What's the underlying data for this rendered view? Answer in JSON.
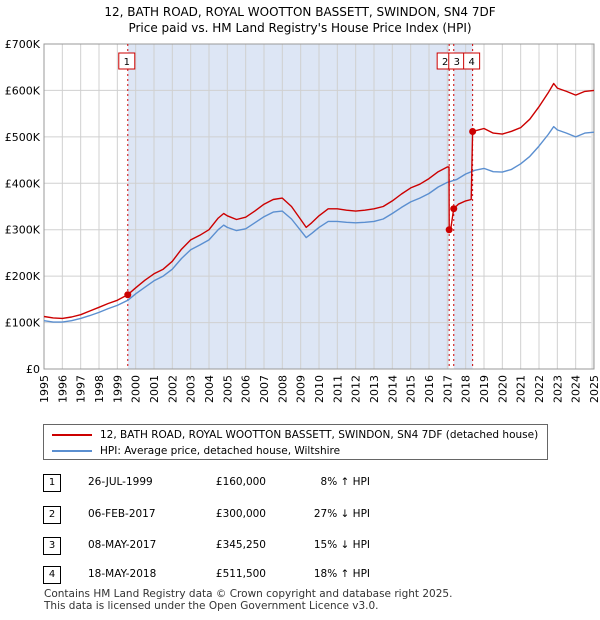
{
  "title": {
    "line1": "12, BATH ROAD, ROYAL WOOTTON BASSETT, SWINDON, SN4 7DF",
    "line2": "Price paid vs. HM Land Registry's House Price Index (HPI)"
  },
  "colors": {
    "property": "#cc0000",
    "hpi": "#5b8fd0",
    "ownership_shade": "#dde6f5",
    "grid": "#d0d0d0",
    "marker_line": "#cc0000"
  },
  "legend": {
    "property_label": "12, BATH ROAD, ROYAL WOOTTON BASSETT, SWINDON, SN4 7DF (detached house)",
    "hpi_label": "HPI: Average price, detached house, Wiltshire"
  },
  "transactions": [
    {
      "id": "1",
      "date": "26-JUL-1999",
      "price": "£160,000",
      "hpi": "8% ↑ HPI"
    },
    {
      "id": "2",
      "date": "06-FEB-2017",
      "price": "£300,000",
      "hpi": "27% ↓ HPI"
    },
    {
      "id": "3",
      "date": "08-MAY-2017",
      "price": "£345,250",
      "hpi": "15% ↓ HPI"
    },
    {
      "id": "4",
      "date": "18-MAY-2018",
      "price": "£511,500",
      "hpi": "18% ↑ HPI"
    }
  ],
  "footer": {
    "line1": "Contains HM Land Registry data © Crown copyright and database right 2025.",
    "line2": "This data is licensed under the Open Government Licence v3.0."
  },
  "chart_data": {
    "type": "line",
    "title": "12, BATH ROAD, ROYAL WOOTTON BASSETT, SWINDON, SN4 7DF — Price paid vs. HM Land Registry's House Price Index (HPI)",
    "xlim": [
      1995,
      2025
    ],
    "ylim": [
      0,
      700000
    ],
    "x_ticks": [
      1995,
      1996,
      1997,
      1998,
      1999,
      2000,
      2001,
      2002,
      2003,
      2004,
      2005,
      2006,
      2007,
      2008,
      2009,
      2010,
      2011,
      2012,
      2013,
      2014,
      2015,
      2016,
      2017,
      2018,
      2019,
      2020,
      2021,
      2022,
      2023,
      2024,
      2025
    ],
    "y_ticks": [
      {
        "value": 0,
        "label": "£0"
      },
      {
        "value": 100000,
        "label": "£100K"
      },
      {
        "value": 200000,
        "label": "£200K"
      },
      {
        "value": 300000,
        "label": "£300K"
      },
      {
        "value": 400000,
        "label": "£400K"
      },
      {
        "value": 500000,
        "label": "£500K"
      },
      {
        "value": 600000,
        "label": "£600K"
      },
      {
        "value": 700000,
        "label": "£700K"
      }
    ],
    "ownership_periods": [
      [
        1999.57,
        2017.1
      ],
      [
        2017.35,
        2018.38
      ]
    ],
    "sale_markers": [
      {
        "label": "1",
        "x": 1999.57,
        "y": 160000
      },
      {
        "label": "2",
        "x": 2017.1,
        "y": 300000
      },
      {
        "label": "3",
        "x": 2017.35,
        "y": 345250
      },
      {
        "label": "4",
        "x": 2018.38,
        "y": 511500
      }
    ],
    "series": [
      {
        "name": "12, BATH ROAD, ROYAL WOOTTON BASSETT, SWINDON, SN4 7DF (detached house)",
        "color": "#cc0000",
        "points": [
          [
            1995.0,
            113000
          ],
          [
            1995.5,
            110000
          ],
          [
            1996.0,
            109000
          ],
          [
            1996.5,
            112000
          ],
          [
            1997.0,
            117000
          ],
          [
            1997.5,
            125000
          ],
          [
            1998.0,
            133000
          ],
          [
            1998.5,
            141000
          ],
          [
            1999.0,
            148000
          ],
          [
            1999.57,
            160000
          ],
          [
            2000.0,
            175000
          ],
          [
            2000.5,
            191000
          ],
          [
            2001.0,
            205000
          ],
          [
            2001.5,
            215000
          ],
          [
            2002.0,
            232000
          ],
          [
            2002.5,
            258000
          ],
          [
            2003.0,
            278000
          ],
          [
            2003.5,
            288000
          ],
          [
            2004.0,
            300000
          ],
          [
            2004.5,
            325000
          ],
          [
            2004.8,
            335000
          ],
          [
            2005.0,
            330000
          ],
          [
            2005.5,
            322000
          ],
          [
            2006.0,
            327000
          ],
          [
            2006.5,
            340000
          ],
          [
            2007.0,
            355000
          ],
          [
            2007.5,
            365000
          ],
          [
            2008.0,
            368000
          ],
          [
            2008.5,
            350000
          ],
          [
            2009.0,
            322000
          ],
          [
            2009.3,
            305000
          ],
          [
            2009.6,
            315000
          ],
          [
            2010.0,
            330000
          ],
          [
            2010.5,
            345000
          ],
          [
            2011.0,
            345000
          ],
          [
            2011.5,
            342000
          ],
          [
            2012.0,
            340000
          ],
          [
            2012.5,
            342000
          ],
          [
            2013.0,
            345000
          ],
          [
            2013.5,
            350000
          ],
          [
            2014.0,
            362000
          ],
          [
            2014.5,
            377000
          ],
          [
            2015.0,
            390000
          ],
          [
            2015.5,
            398000
          ],
          [
            2016.0,
            410000
          ],
          [
            2016.5,
            425000
          ],
          [
            2017.0,
            435000
          ],
          [
            2017.09,
            435000
          ],
          [
            2017.1,
            300000
          ],
          [
            2017.2,
            305000
          ],
          [
            2017.35,
            345250
          ],
          [
            2017.6,
            355000
          ],
          [
            2018.0,
            362000
          ],
          [
            2018.3,
            365000
          ],
          [
            2018.38,
            511500
          ],
          [
            2018.7,
            515000
          ],
          [
            2019.0,
            518000
          ],
          [
            2019.5,
            508000
          ],
          [
            2020.0,
            506000
          ],
          [
            2020.5,
            512000
          ],
          [
            2021.0,
            520000
          ],
          [
            2021.5,
            538000
          ],
          [
            2022.0,
            565000
          ],
          [
            2022.5,
            595000
          ],
          [
            2022.8,
            615000
          ],
          [
            2023.0,
            605000
          ],
          [
            2023.5,
            598000
          ],
          [
            2024.0,
            590000
          ],
          [
            2024.5,
            598000
          ],
          [
            2025.0,
            600000
          ]
        ]
      },
      {
        "name": "HPI: Average price, detached house, Wiltshire",
        "color": "#5b8fd0",
        "points": [
          [
            1995.0,
            104000
          ],
          [
            1995.5,
            101000
          ],
          [
            1996.0,
            101000
          ],
          [
            1996.5,
            104000
          ],
          [
            1997.0,
            109000
          ],
          [
            1997.5,
            115000
          ],
          [
            1998.0,
            122000
          ],
          [
            1998.5,
            130000
          ],
          [
            1999.0,
            137000
          ],
          [
            1999.57,
            148000
          ],
          [
            2000.0,
            162000
          ],
          [
            2000.5,
            176000
          ],
          [
            2001.0,
            190000
          ],
          [
            2001.5,
            200000
          ],
          [
            2002.0,
            215000
          ],
          [
            2002.5,
            238000
          ],
          [
            2003.0,
            257000
          ],
          [
            2003.5,
            267000
          ],
          [
            2004.0,
            278000
          ],
          [
            2004.5,
            300000
          ],
          [
            2004.8,
            310000
          ],
          [
            2005.0,
            305000
          ],
          [
            2005.5,
            298000
          ],
          [
            2006.0,
            302000
          ],
          [
            2006.5,
            315000
          ],
          [
            2007.0,
            328000
          ],
          [
            2007.5,
            338000
          ],
          [
            2008.0,
            340000
          ],
          [
            2008.5,
            323000
          ],
          [
            2009.0,
            298000
          ],
          [
            2009.3,
            283000
          ],
          [
            2009.6,
            292000
          ],
          [
            2010.0,
            305000
          ],
          [
            2010.5,
            318000
          ],
          [
            2011.0,
            318000
          ],
          [
            2011.5,
            316000
          ],
          [
            2012.0,
            315000
          ],
          [
            2012.5,
            316000
          ],
          [
            2013.0,
            318000
          ],
          [
            2013.5,
            323000
          ],
          [
            2014.0,
            335000
          ],
          [
            2014.5,
            348000
          ],
          [
            2015.0,
            360000
          ],
          [
            2015.5,
            368000
          ],
          [
            2016.0,
            378000
          ],
          [
            2016.5,
            392000
          ],
          [
            2017.0,
            402000
          ],
          [
            2017.5,
            408000
          ],
          [
            2018.0,
            420000
          ],
          [
            2018.5,
            428000
          ],
          [
            2019.0,
            432000
          ],
          [
            2019.5,
            425000
          ],
          [
            2020.0,
            424000
          ],
          [
            2020.5,
            430000
          ],
          [
            2021.0,
            442000
          ],
          [
            2021.5,
            458000
          ],
          [
            2022.0,
            480000
          ],
          [
            2022.5,
            505000
          ],
          [
            2022.8,
            522000
          ],
          [
            2023.0,
            515000
          ],
          [
            2023.5,
            508000
          ],
          [
            2024.0,
            500000
          ],
          [
            2024.5,
            508000
          ],
          [
            2025.0,
            510000
          ]
        ]
      }
    ],
    "xlabel": "",
    "ylabel": "",
    "grid": true
  }
}
